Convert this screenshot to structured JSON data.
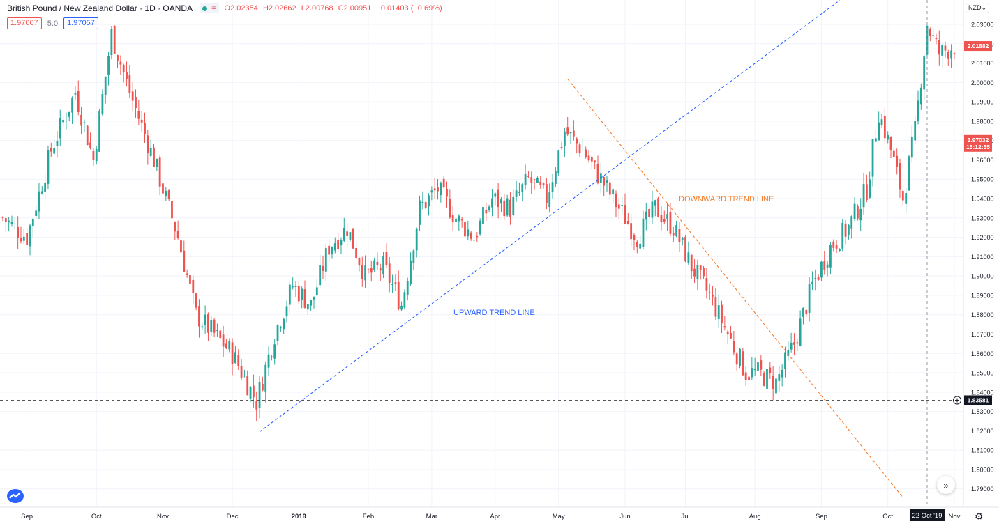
{
  "header": {
    "title": "British Pound / New Zealand Dollar · 1D · OANDA",
    "ohlc": {
      "o": "O2.02354",
      "h": "H2.02662",
      "l": "L2.00768",
      "c": "C2.00951",
      "chg": "−0.01403 (−0.69%)"
    },
    "sell_price": "1.97007",
    "spread": "5.0",
    "buy_price": "1.97057",
    "currency_selector": "NZD",
    "icons": [
      "indicator-dot-icon",
      "equals-icon"
    ]
  },
  "colors": {
    "up": "#26a69a",
    "down": "#ef5350",
    "up_trend": "#2962ff",
    "down_trend": "#f57c2a",
    "grid": "#f0f3fa",
    "axis_text": "#131722"
  },
  "price_labels": {
    "last": "2.01882",
    "marked": "1.97032",
    "countdown": "15:12:55",
    "crosshair": "1.83581"
  },
  "crosshair_date": "22 Oct '19",
  "chart_data": {
    "type": "candlestick",
    "title": "British Pound / New Zealand Dollar · 1D · OANDA",
    "ylim": [
      1.785,
      2.042
    ],
    "y_ticks": [
      "2.03000",
      "2.02000",
      "2.01000",
      "2.00000",
      "1.99000",
      "1.98000",
      "1.97000",
      "1.96000",
      "1.95000",
      "1.94000",
      "1.93000",
      "1.92000",
      "1.91000",
      "1.90000",
      "1.89000",
      "1.88000",
      "1.87000",
      "1.86000",
      "1.85000",
      "1.84000",
      "1.83000",
      "1.82000",
      "1.81000",
      "1.80000",
      "1.79000"
    ],
    "x_ticks": [
      "Sep",
      "Oct",
      "Nov",
      "Dec",
      "2019",
      "Feb",
      "Mar",
      "Apr",
      "May",
      "Jun",
      "Jul",
      "Aug",
      "Sep",
      "Oct",
      "Nov"
    ],
    "x_tick_index": [
      8,
      31,
      53,
      76,
      98,
      121,
      142,
      163,
      184,
      206,
      226,
      249,
      271,
      293,
      315
    ],
    "candles_count": 316,
    "close_anchors": [
      [
        0,
        1.93
      ],
      [
        8,
        1.92
      ],
      [
        16,
        1.965
      ],
      [
        24,
        1.995
      ],
      [
        30,
        1.96
      ],
      [
        36,
        2.025
      ],
      [
        42,
        1.995
      ],
      [
        50,
        1.96
      ],
      [
        58,
        1.92
      ],
      [
        64,
        1.88
      ],
      [
        70,
        1.87
      ],
      [
        76,
        1.86
      ],
      [
        84,
        1.835
      ],
      [
        90,
        1.87
      ],
      [
        96,
        1.895
      ],
      [
        102,
        1.885
      ],
      [
        108,
        1.915
      ],
      [
        114,
        1.925
      ],
      [
        120,
        1.9
      ],
      [
        126,
        1.905
      ],
      [
        132,
        1.885
      ],
      [
        138,
        1.935
      ],
      [
        144,
        1.945
      ],
      [
        150,
        1.93
      ],
      [
        156,
        1.92
      ],
      [
        162,
        1.94
      ],
      [
        168,
        1.935
      ],
      [
        174,
        1.95
      ],
      [
        180,
        1.94
      ],
      [
        186,
        1.975
      ],
      [
        192,
        1.965
      ],
      [
        198,
        1.95
      ],
      [
        204,
        1.935
      ],
      [
        210,
        1.92
      ],
      [
        216,
        1.935
      ],
      [
        222,
        1.925
      ],
      [
        228,
        1.905
      ],
      [
        234,
        1.89
      ],
      [
        240,
        1.87
      ],
      [
        246,
        1.85
      ],
      [
        250,
        1.85
      ],
      [
        256,
        1.845
      ],
      [
        262,
        1.865
      ],
      [
        268,
        1.895
      ],
      [
        274,
        1.915
      ],
      [
        280,
        1.925
      ],
      [
        286,
        1.945
      ],
      [
        290,
        1.985
      ],
      [
        294,
        1.965
      ],
      [
        298,
        1.94
      ],
      [
        302,
        1.975
      ],
      [
        306,
        2.03
      ],
      [
        310,
        2.015
      ],
      [
        315,
        2.019
      ]
    ],
    "trend_lines": [
      {
        "label": "UPWARD TREND LINE",
        "from": [
          85,
          1.8195
        ],
        "to": [
          277,
          2.0424
        ]
      },
      {
        "label": "DOWNWARD TREND LINE",
        "from": [
          187,
          2.0018
        ],
        "to": [
          298,
          1.7855
        ]
      }
    ],
    "horizontal_line": 1.83581,
    "vertical_crosshair_index": 306
  }
}
